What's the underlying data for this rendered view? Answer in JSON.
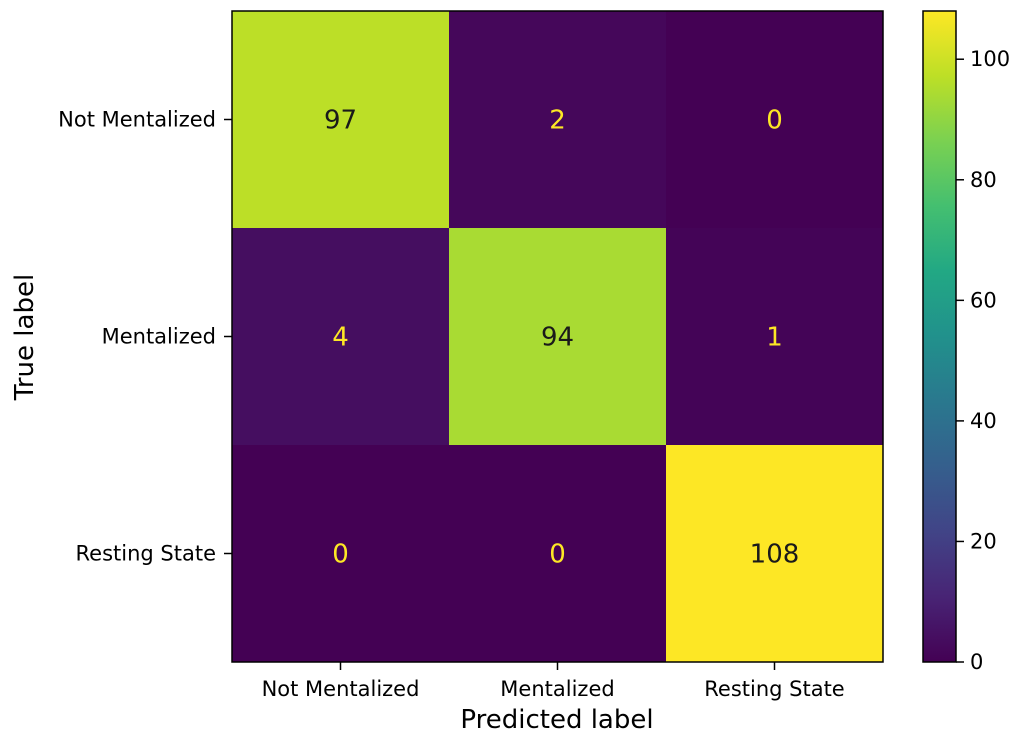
{
  "chart_data": {
    "type": "heatmap",
    "title": "",
    "xlabel": "Predicted label",
    "ylabel": "True label",
    "x_categories": [
      "Not Mentalized",
      "Mentalized",
      "Resting State"
    ],
    "y_categories": [
      "Not Mentalized",
      "Mentalized",
      "Resting State"
    ],
    "matrix": [
      [
        97,
        2,
        0
      ],
      [
        4,
        94,
        1
      ],
      [
        0,
        0,
        108
      ]
    ],
    "colormap": "viridis",
    "color_range": [
      0,
      108
    ],
    "colorbar_ticks": [
      0,
      20,
      40,
      60,
      80,
      100
    ],
    "text_color_dark_cells": "#fde725",
    "text_color_light_cells": "#1a1a1a"
  }
}
